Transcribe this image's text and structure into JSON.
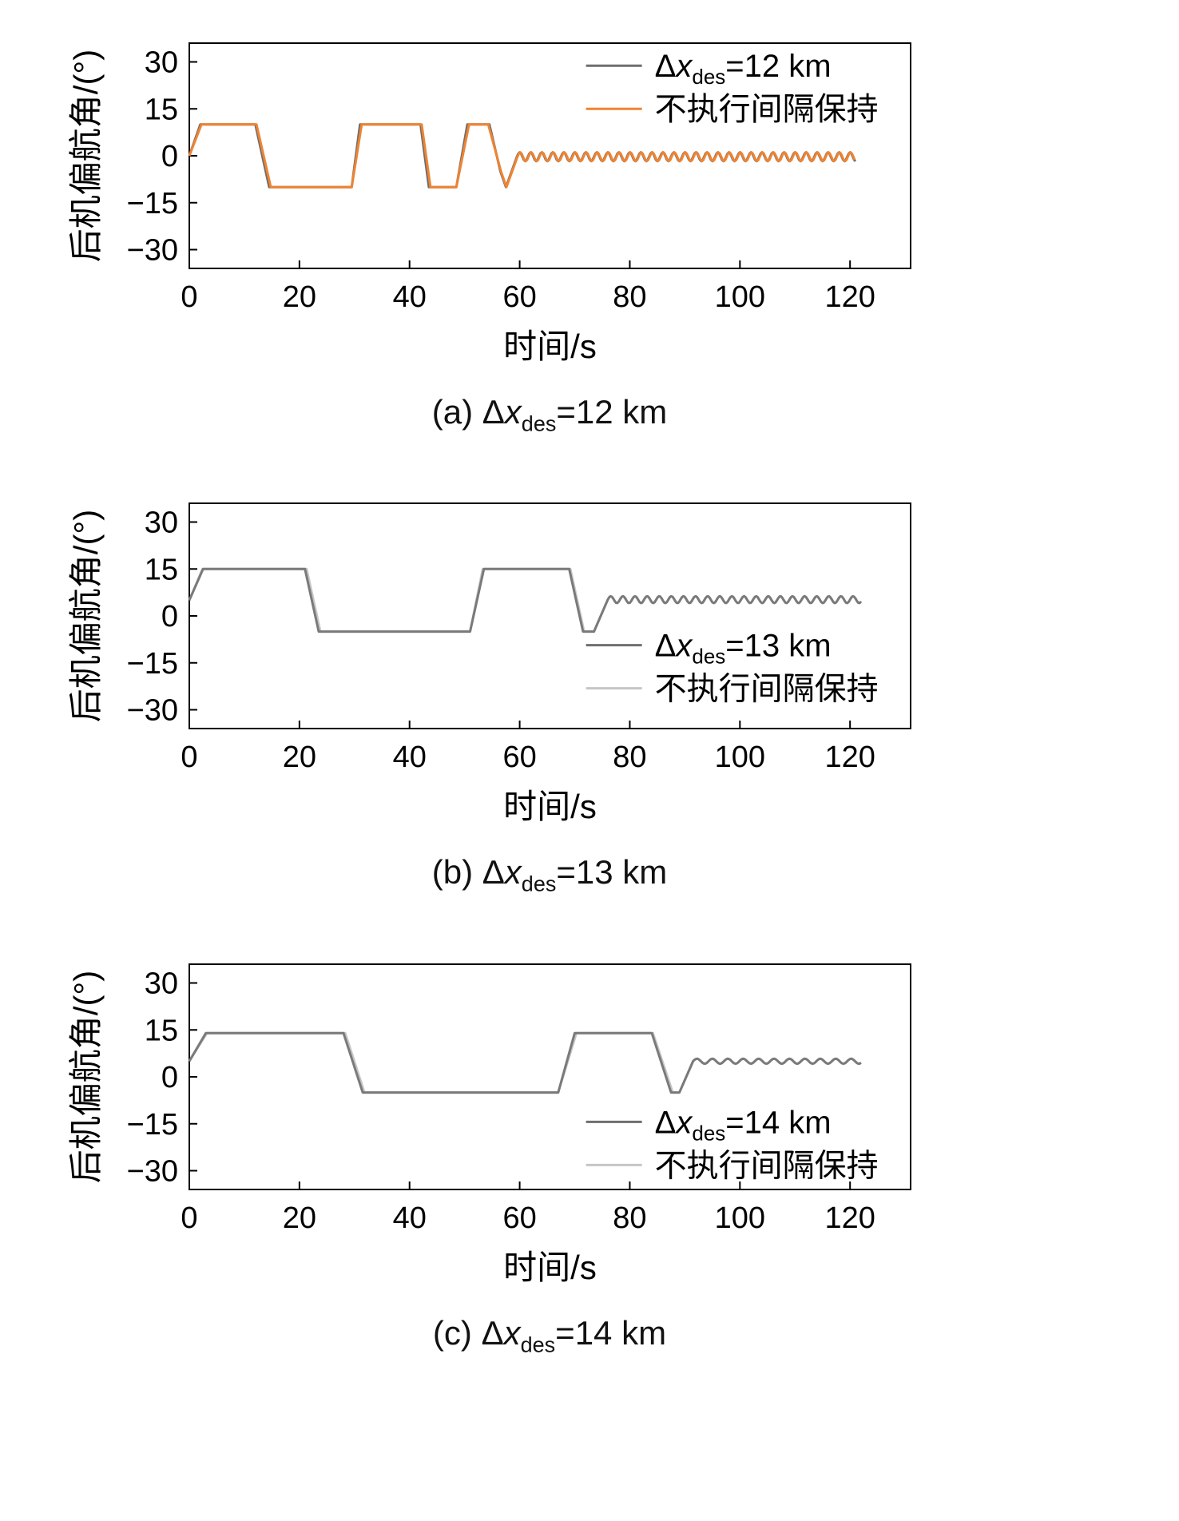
{
  "page": {
    "background": "#ffffff"
  },
  "chart_data": [
    {
      "type": "line",
      "panel": "a",
      "xlabel": "时间/s",
      "ylabel": "后机偏航角/(°)",
      "xlim": [
        0,
        131
      ],
      "ylim": [
        -36,
        36
      ],
      "xticks": [
        0,
        20,
        40,
        60,
        80,
        100,
        120
      ],
      "yticks": [
        -30,
        -15,
        0,
        15,
        30
      ],
      "caption": {
        "tag": "(a)",
        "delta": "Δ",
        "var": "x",
        "sub": "des",
        "rest": "=12 km",
        "text": "(a) Δx_des=12 km"
      },
      "legend": {
        "x": 0.55,
        "y": 0.1,
        "row_gap": 54,
        "entries": [
          {
            "color": "#6e6e6e",
            "label": "Δx_des=12 km",
            "math": {
              "delta": "Δ",
              "var": "x",
              "sub": "des",
              "rest": "=12 km"
            }
          },
          {
            "color": "#ef8432",
            "label": "不执行间隔保持",
            "text": "不执行间隔保持"
          }
        ]
      },
      "series": [
        {
          "name": "interval-keeping-12km",
          "color": "#6e6e6e",
          "width": 3,
          "keypoints": [
            [
              0,
              0
            ],
            [
              2,
              10
            ],
            [
              12,
              10
            ],
            [
              14.5,
              -10
            ],
            [
              29.5,
              -10
            ],
            [
              31,
              10
            ],
            [
              42,
              10
            ],
            [
              43.5,
              -10
            ],
            [
              48.5,
              -10
            ],
            [
              50.5,
              10
            ],
            [
              54.5,
              10
            ],
            [
              56.5,
              -5
            ],
            [
              57.5,
              -10
            ],
            [
              59.5,
              -0.3
            ]
          ],
          "osc": {
            "from": 59.5,
            "to": 121,
            "base": -0.3,
            "amp": 1.4,
            "period": 2
          }
        },
        {
          "name": "no-interval-keeping",
          "color": "#ef8432",
          "width": 3,
          "keypoints": [
            [
              0,
              0
            ],
            [
              2.2,
              10
            ],
            [
              12.2,
              10
            ],
            [
              14.8,
              -10
            ],
            [
              29.5,
              -10
            ],
            [
              31.3,
              10
            ],
            [
              42.2,
              10
            ],
            [
              43.8,
              -10
            ],
            [
              48.5,
              -10
            ],
            [
              50.8,
              10
            ],
            [
              54.3,
              10
            ],
            [
              56.6,
              -5
            ],
            [
              57.6,
              -10
            ],
            [
              59.6,
              -0.3
            ]
          ],
          "osc": {
            "from": 59.6,
            "to": 121,
            "base": -0.3,
            "amp": 1.4,
            "period": 2
          }
        }
      ]
    },
    {
      "type": "line",
      "panel": "b",
      "xlabel": "时间/s",
      "ylabel": "后机偏航角/(°)",
      "xlim": [
        0,
        131
      ],
      "ylim": [
        -36,
        36
      ],
      "xticks": [
        0,
        20,
        40,
        60,
        80,
        100,
        120
      ],
      "yticks": [
        -30,
        -15,
        0,
        15,
        30
      ],
      "caption": {
        "tag": "(b)",
        "delta": "Δ",
        "var": "x",
        "sub": "des",
        "rest": "=13 km",
        "text": "(b) Δx_des=13 km"
      },
      "legend": {
        "x": 0.55,
        "y": 0.63,
        "row_gap": 54,
        "entries": [
          {
            "color": "#6e6e6e",
            "label": "Δx_des=13 km",
            "math": {
              "delta": "Δ",
              "var": "x",
              "sub": "des",
              "rest": "=13 km"
            }
          },
          {
            "color": "#c6c6c6",
            "label": "不执行间隔保持",
            "text": "不执行间隔保持"
          }
        ]
      },
      "series": [
        {
          "name": "no-interval-keeping",
          "color": "#c6c6c6",
          "width": 3,
          "keypoints": [
            [
              0,
              5
            ],
            [
              2.4,
              15
            ],
            [
              21.3,
              15
            ],
            [
              23.8,
              -5
            ],
            [
              51,
              -5
            ],
            [
              53.3,
              15
            ],
            [
              69.2,
              15
            ],
            [
              71.7,
              -5
            ],
            [
              73.5,
              -5
            ],
            [
              76,
              5.2
            ]
          ],
          "osc": {
            "from": 76,
            "to": 122,
            "base": 5.2,
            "amp": 1.1,
            "period": 2.2
          }
        },
        {
          "name": "interval-keeping-13km",
          "color": "#7a7a7a",
          "width": 3,
          "keypoints": [
            [
              0,
              5
            ],
            [
              2.5,
              15
            ],
            [
              21,
              15
            ],
            [
              23.5,
              -5
            ],
            [
              51,
              -5
            ],
            [
              53.5,
              15
            ],
            [
              69,
              15
            ],
            [
              71.5,
              -5
            ],
            [
              73.5,
              -5
            ],
            [
              76,
              5.2
            ]
          ],
          "osc": {
            "from": 76,
            "to": 122,
            "base": 5.2,
            "amp": 1.1,
            "period": 2.2
          }
        }
      ]
    },
    {
      "type": "line",
      "panel": "c",
      "xlabel": "时间/s",
      "ylabel": "后机偏航角/(°)",
      "xlim": [
        0,
        131
      ],
      "ylim": [
        -36,
        36
      ],
      "xticks": [
        0,
        20,
        40,
        60,
        80,
        100,
        120
      ],
      "yticks": [
        -30,
        -15,
        0,
        15,
        30
      ],
      "caption": {
        "tag": "(c)",
        "delta": "Δ",
        "var": "x",
        "sub": "des",
        "rest": "=14 km",
        "text": "(c) Δx_des=14 km"
      },
      "legend": {
        "x": 0.55,
        "y": 0.7,
        "row_gap": 54,
        "entries": [
          {
            "color": "#6e6e6e",
            "label": "Δx_des=14 km",
            "math": {
              "delta": "Δ",
              "var": "x",
              "sub": "des",
              "rest": "=14 km"
            }
          },
          {
            "color": "#c6c6c6",
            "label": "不执行间隔保持",
            "text": "不执行间隔保持"
          }
        ]
      },
      "series": [
        {
          "name": "no-interval-keeping",
          "color": "#c6c6c6",
          "width": 3,
          "keypoints": [
            [
              0,
              5
            ],
            [
              3.2,
              14
            ],
            [
              28.3,
              14
            ],
            [
              31.8,
              -5
            ],
            [
              67,
              -5
            ],
            [
              70.3,
              14
            ],
            [
              84.2,
              14
            ],
            [
              87.8,
              -5
            ],
            [
              89,
              -5
            ],
            [
              91.5,
              5
            ]
          ],
          "osc": {
            "from": 91.5,
            "to": 122,
            "base": 5,
            "amp": 0.8,
            "period": 2.8
          }
        },
        {
          "name": "interval-keeping-14km",
          "color": "#7a7a7a",
          "width": 3,
          "keypoints": [
            [
              0,
              5
            ],
            [
              3,
              14
            ],
            [
              28,
              14
            ],
            [
              31.5,
              -5
            ],
            [
              67,
              -5
            ],
            [
              70,
              14
            ],
            [
              84,
              14
            ],
            [
              87.5,
              -5
            ],
            [
              89,
              -5
            ],
            [
              91.5,
              5
            ]
          ],
          "osc": {
            "from": 91.5,
            "to": 122,
            "base": 5,
            "amp": 0.8,
            "period": 2.8
          }
        }
      ]
    }
  ]
}
